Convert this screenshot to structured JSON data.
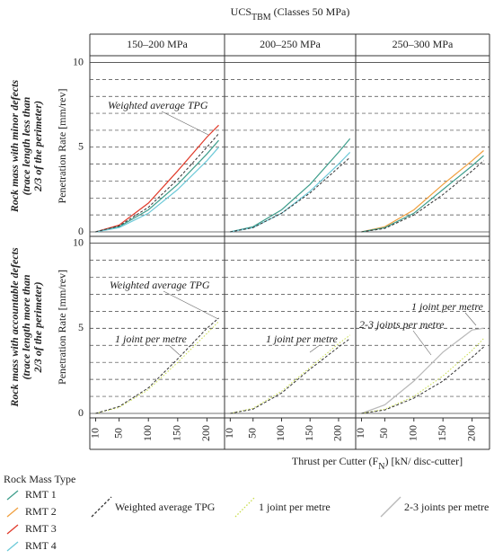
{
  "figure": {
    "title": [
      {
        "text": "UCS"
      },
      {
        "text": "TBM",
        "sub": true
      },
      {
        "text": " (Classes 50 MPa)"
      }
    ],
    "column_headers": [
      "150–200 MPa",
      "200–250 MPa",
      "250–300 MPa"
    ],
    "row_labels": [
      [
        "Rock mass with minor defects",
        "(trace length less than",
        "2/3 of the perimeter)"
      ],
      [
        "Rock mass with accountable defects",
        "(trace length more than",
        "2/3 of the perimeter)"
      ]
    ],
    "y_label": "Penetration Rate [mm/rev]",
    "x_label": [
      {
        "text": "Thrust per Cutter (F"
      },
      {
        "text": "N",
        "sub": true
      },
      {
        "text": ") [kN/ disc-cutter]"
      }
    ],
    "legend_title": "Rock Mass Type",
    "legend": [
      {
        "name": "RMT 1",
        "color": "#3f9e8c",
        "style": "solid"
      },
      {
        "name": "RMT 2",
        "color": "#f0a040",
        "style": "solid"
      },
      {
        "name": "RMT 3",
        "color": "#e03a2a",
        "style": "solid"
      },
      {
        "name": "RMT 4",
        "color": "#6cc9d8",
        "style": "solid"
      },
      {
        "name": "Weighted average TPG",
        "color": "#333333",
        "style": "dashed"
      },
      {
        "name": "1 joint per metre",
        "color": "#c8dc4a",
        "style": "dotted"
      },
      {
        "name": "2-3 joints per metre",
        "color": "#b8b8b8",
        "style": "solid"
      }
    ]
  },
  "chart_data": [
    {
      "type": "line",
      "x": [
        10,
        50,
        100,
        150,
        200,
        220
      ],
      "xlim": [
        0,
        230
      ],
      "ylim": [
        0,
        10.4
      ],
      "yticks": [
        0,
        5,
        10
      ],
      "minor_yticks": [
        1,
        2,
        3,
        4,
        6,
        7,
        8,
        9
      ],
      "series": [
        {
          "name": "RMT 3",
          "values": [
            0,
            0.4,
            1.7,
            3.6,
            5.6,
            6.3
          ]
        },
        {
          "name": "RMT 1",
          "values": [
            0,
            0.3,
            1.3,
            2.8,
            4.6,
            5.4
          ]
        },
        {
          "name": "RMT 4",
          "values": [
            0,
            0.25,
            1.1,
            2.5,
            4.2,
            5.0
          ]
        },
        {
          "name": "Weighted average TPG",
          "values": [
            0,
            0.35,
            1.45,
            3.1,
            5.0,
            5.8
          ]
        }
      ],
      "annotations": [
        "Weighted average TPG"
      ]
    },
    {
      "type": "line",
      "x": [
        10,
        50,
        100,
        150,
        200,
        220
      ],
      "xlim": [
        0,
        230
      ],
      "ylim": [
        0,
        10.4
      ],
      "yticks": [
        0,
        5,
        10
      ],
      "minor_yticks": [
        1,
        2,
        3,
        4,
        6,
        7,
        8,
        9
      ],
      "series": [
        {
          "name": "RMT 1",
          "values": [
            0,
            0.3,
            1.3,
            2.8,
            4.7,
            5.5
          ]
        },
        {
          "name": "RMT 4",
          "values": [
            0,
            0.25,
            1.1,
            2.4,
            4.0,
            4.7
          ]
        },
        {
          "name": "Weighted average TPG",
          "values": [
            0,
            0.25,
            1.1,
            2.3,
            3.8,
            4.4
          ]
        }
      ],
      "annotations": []
    },
    {
      "type": "line",
      "x": [
        10,
        50,
        100,
        150,
        200,
        220
      ],
      "xlim": [
        0,
        230
      ],
      "ylim": [
        0,
        10.4
      ],
      "yticks": [
        0,
        5,
        10
      ],
      "minor_yticks": [
        1,
        2,
        3,
        4,
        6,
        7,
        8,
        9
      ],
      "series": [
        {
          "name": "RMT 2",
          "values": [
            0,
            0.3,
            1.3,
            2.8,
            4.2,
            4.8
          ]
        },
        {
          "name": "RMT 1",
          "values": [
            0,
            0.25,
            1.1,
            2.5,
            3.9,
            4.5
          ]
        },
        {
          "name": "Weighted average TPG",
          "values": [
            0,
            0.2,
            1.0,
            2.2,
            3.6,
            4.2
          ]
        }
      ],
      "annotations": []
    },
    {
      "type": "line",
      "x": [
        10,
        50,
        100,
        150,
        200,
        220
      ],
      "xlim": [
        0,
        230
      ],
      "ylim": [
        0,
        10.4
      ],
      "yticks": [
        0,
        5,
        10
      ],
      "minor_yticks": [
        1,
        2,
        3,
        4,
        6,
        7,
        8,
        9
      ],
      "xticks": [
        10,
        50,
        100,
        150,
        200
      ],
      "series": [
        {
          "name": "1 joint per metre",
          "values": [
            0,
            0.35,
            1.4,
            3.0,
            4.7,
            5.4
          ]
        },
        {
          "name": "Weighted average TPG",
          "values": [
            0,
            0.4,
            1.5,
            3.2,
            5.0,
            5.6
          ]
        }
      ],
      "annotations": [
        "Weighted average TPG",
        "1 joint per metre"
      ]
    },
    {
      "type": "line",
      "x": [
        10,
        50,
        100,
        150,
        200,
        220
      ],
      "xlim": [
        0,
        230
      ],
      "ylim": [
        0,
        10.4
      ],
      "yticks": [
        0,
        5,
        10
      ],
      "minor_yticks": [
        1,
        2,
        3,
        4,
        6,
        7,
        8,
        9
      ],
      "xticks": [
        10,
        50,
        100,
        150,
        200
      ],
      "series": [
        {
          "name": "1 joint per metre",
          "values": [
            0,
            0.3,
            1.3,
            2.7,
            4.1,
            4.6
          ]
        },
        {
          "name": "Weighted average TPG",
          "values": [
            0,
            0.25,
            1.2,
            2.6,
            3.9,
            4.4
          ]
        }
      ],
      "annotations": [
        "1 joint per metre"
      ]
    },
    {
      "type": "line",
      "x": [
        10,
        50,
        100,
        150,
        200,
        220
      ],
      "xlim": [
        0,
        230
      ],
      "ylim": [
        0,
        10.4
      ],
      "yticks": [
        0,
        5,
        10
      ],
      "minor_yticks": [
        1,
        2,
        3,
        4,
        6,
        7,
        8,
        9
      ],
      "xticks": [
        10,
        50,
        100,
        150,
        200
      ],
      "series": [
        {
          "name": "2-3 joints per metre",
          "values": [
            0,
            0.5,
            1.9,
            3.6,
            4.9,
            5.0
          ]
        },
        {
          "name": "1 joint per metre",
          "values": [
            0,
            0.25,
            1.0,
            2.2,
            3.7,
            4.4
          ]
        },
        {
          "name": "Weighted average TPG",
          "values": [
            0,
            0.2,
            0.9,
            1.9,
            3.3,
            3.9
          ]
        }
      ],
      "annotations": [
        "1 joint per metre",
        "2-3 joints per metre"
      ]
    }
  ]
}
